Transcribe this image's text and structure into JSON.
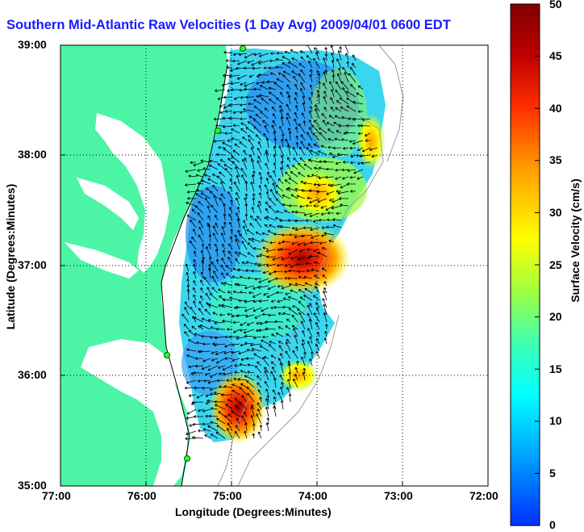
{
  "title": "Southern Mid-Atlantic Raw Velocities (1 Day Avg) 2009/04/01 0600 EDT",
  "axes": {
    "xlabel": "Longitude (Degrees:Minutes)",
    "ylabel": "Latitude (Degrees:Minutes)",
    "x_ticks": [
      "77:00",
      "76:00",
      "75:00",
      "74:00",
      "73:00",
      "72:00"
    ],
    "y_ticks": [
      "39:00",
      "38:00",
      "37:00",
      "36:00",
      "35:00"
    ],
    "grid": "dotted"
  },
  "colorbar": {
    "label": "Surface Velocity (cm/s)",
    "ticks": [
      "0",
      "5",
      "10",
      "15",
      "20",
      "25",
      "30",
      "35",
      "40",
      "45",
      "50"
    ],
    "range": [
      0,
      50
    ],
    "colormap": [
      "#0030ff",
      "#00b0ff",
      "#00ffff",
      "#40ffb0",
      "#a0ff40",
      "#ffff00",
      "#ffa000",
      "#ff3000",
      "#c00000",
      "#800000"
    ]
  },
  "colors": {
    "land": "#4cf5a6",
    "water_bg": "#ffffff",
    "title": "#1a1aff",
    "arrows": "#000000",
    "stations": "#2aff2a"
  },
  "chart_data": {
    "type": "heatmap",
    "title": "Southern Mid-Atlantic Raw Velocities (1 Day Avg) 2009/04/01 0600 EDT",
    "xlabel": "Longitude (Degrees:Minutes)",
    "ylabel": "Latitude (Degrees:Minutes)",
    "xlim": [
      -77,
      -72
    ],
    "ylim": [
      35,
      39
    ],
    "colorbar_range_cm_s": [
      0,
      50
    ],
    "hotspots": [
      {
        "lon": -74.2,
        "lat": 37.0,
        "speed_cm_s": 45
      },
      {
        "lon": -74.0,
        "lat": 37.5,
        "speed_cm_s": 30
      },
      {
        "lon": -74.9,
        "lat": 35.7,
        "speed_cm_s": 45
      },
      {
        "lon": -73.3,
        "lat": 38.2,
        "speed_cm_s": 30
      }
    ],
    "stations": [
      {
        "lon": -74.9,
        "lat": 38.95
      },
      {
        "lon": -75.15,
        "lat": 38.25
      },
      {
        "lon": -75.7,
        "lat": 36.2
      },
      {
        "lon": -75.5,
        "lat": 35.25
      }
    ]
  }
}
